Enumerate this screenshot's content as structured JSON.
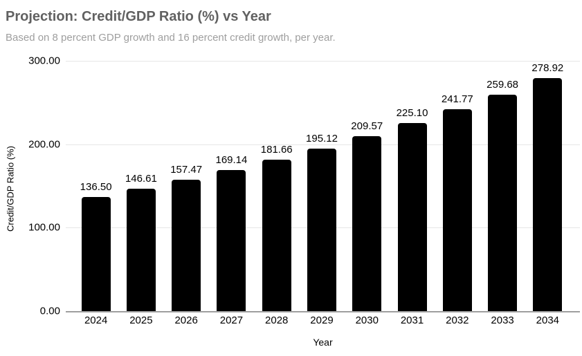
{
  "chart_data": {
    "type": "bar",
    "title": "Projection: Credit/GDP Ratio (%) vs Year",
    "subtitle": "Based on 8 percent GDP growth and 16 percent credit growth, per year.",
    "xlabel": "Year",
    "ylabel": "Credit/GDP Ratio (%)",
    "categories": [
      "2024",
      "2025",
      "2026",
      "2027",
      "2028",
      "2029",
      "2030",
      "2031",
      "2032",
      "2033",
      "2034"
    ],
    "values": [
      136.5,
      146.61,
      157.47,
      169.14,
      181.66,
      195.12,
      209.57,
      225.1,
      241.77,
      259.68,
      278.92
    ],
    "bar_value_labels": [
      "136.50",
      "146.61",
      "157.47",
      "169.14",
      "181.66",
      "195.12",
      "209.57",
      "225.10",
      "241.77",
      "259.68",
      "278.92"
    ],
    "ylim": [
      0,
      300
    ],
    "yticks": [
      0,
      100,
      200,
      300
    ],
    "ytick_labels": [
      "0.00",
      "100.00",
      "200.00",
      "300.00"
    ],
    "grid": true,
    "legend": "none",
    "colors": {
      "bar": "#000000",
      "title": "#616161",
      "subtitle": "#9e9e9e",
      "gridline": "#e6e6e6",
      "axis_line": "#9e9e9e",
      "text": "#000000"
    }
  }
}
